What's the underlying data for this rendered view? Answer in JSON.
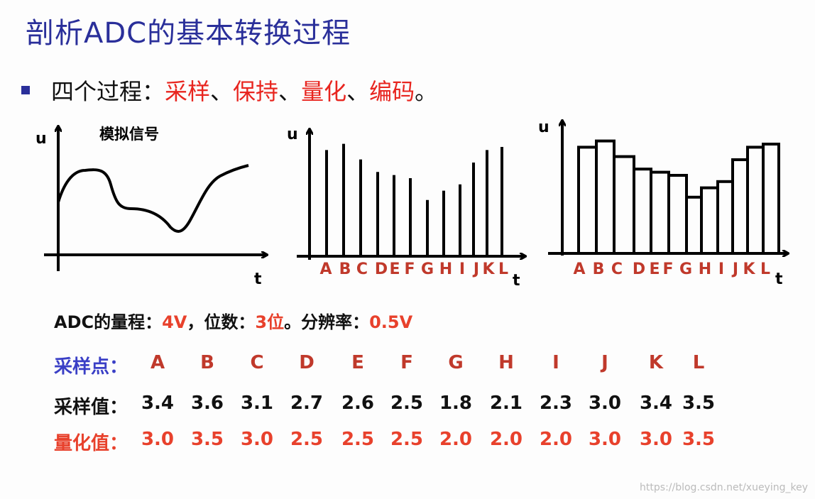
{
  "title": "剖析ADC的基本转换过程",
  "bullet": {
    "prefix": "四个过程：",
    "items": [
      "采样",
      "、",
      "保持",
      "、",
      "量化",
      "、",
      "编码",
      "。"
    ]
  },
  "figures": {
    "analog_label": "模拟信号",
    "axis_u": "u",
    "axis_t": "t",
    "letters": [
      "A",
      "B",
      "C",
      "D",
      "E",
      "F",
      "G",
      "H",
      "I",
      "J",
      "K",
      "L"
    ]
  },
  "info": {
    "range_label": "ADC的量程：",
    "range_value": "4V",
    "bits_label": "，位数：",
    "bits_value": "3位",
    "res_label": "。分辨率：",
    "res_value": "0.5V"
  },
  "table": {
    "points_label": "采样点：",
    "samples_label": "采样值：",
    "quant_label": "量化值：",
    "points": [
      "A",
      "B",
      "C",
      "D",
      "E",
      "F",
      "G",
      "H",
      "I",
      "J",
      "K",
      "L"
    ],
    "samples": [
      "3.4",
      "3.6",
      "3.1",
      "2.7",
      "2.6",
      "2.5",
      "1.8",
      "2.1",
      "2.3",
      "3.0",
      "3.4",
      "3.5"
    ],
    "quantized": [
      "3.0",
      "3.5",
      "3.0",
      "2.5",
      "2.5",
      "2.5",
      "2.0",
      "2.0",
      "2.0",
      "3.0",
      "3.0",
      "3.5"
    ]
  },
  "colors": {
    "title": "#2a2f9a",
    "red": "#e8251f",
    "blue_label": "#3a3fc6",
    "letter_red": "#c0392b"
  },
  "watermark": "https://blog.csdn.net/xueying_key"
}
